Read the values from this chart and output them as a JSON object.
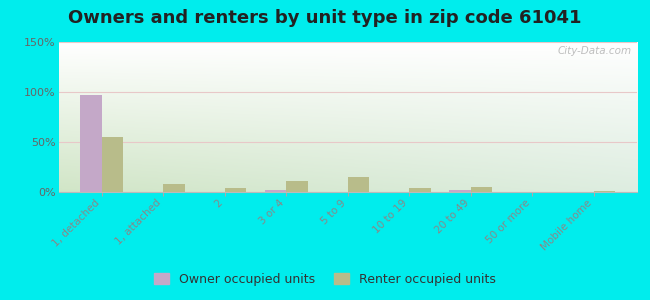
{
  "title": "Owners and renters by unit type in zip code 61041",
  "categories": [
    "1, detached",
    "1, attached",
    "2",
    "3 or 4",
    "5 to 9",
    "10 to 19",
    "20 to 49",
    "50 or more",
    "Mobile home"
  ],
  "owner_values": [
    97,
    0,
    0,
    2,
    0,
    0,
    2,
    0,
    0
  ],
  "renter_values": [
    55,
    8,
    4,
    11,
    15,
    4,
    5,
    0,
    1
  ],
  "owner_color": "#c4a8c8",
  "renter_color": "#b8bc8a",
  "ylim": [
    0,
    150
  ],
  "yticks": [
    0,
    50,
    100,
    150
  ],
  "ytick_labels": [
    "0%",
    "50%",
    "100%",
    "150%"
  ],
  "outer_background": "#00eded",
  "bar_width": 0.35,
  "title_fontsize": 13,
  "watermark": "City-Data.com"
}
